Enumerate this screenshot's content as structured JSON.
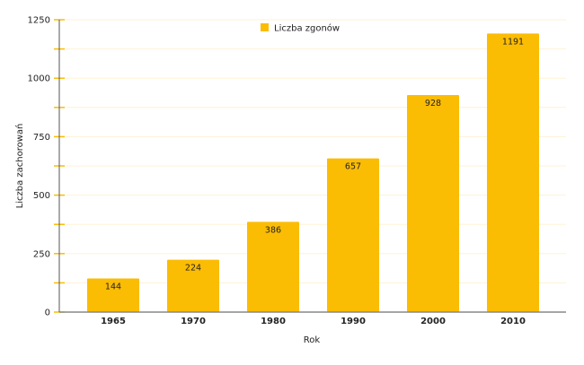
{
  "chart_data": {
    "type": "bar",
    "title": "",
    "xlabel": "Rok",
    "ylabel": "Liczba zachorowań",
    "categories": [
      "1965",
      "1970",
      "1980",
      "1990",
      "2000",
      "2010"
    ],
    "series": [
      {
        "name": "Liczba zgonów",
        "values": [
          144,
          224,
          386,
          657,
          928,
          1191
        ],
        "color": "#FBBC04"
      }
    ],
    "ylim": [
      0,
      1250
    ],
    "yticks": [
      0,
      250,
      500,
      750,
      1000,
      1250
    ],
    "minor_ytick_step": 125,
    "grid": true,
    "legend_position": "top-center",
    "data_labels": true
  },
  "colors": {
    "bar": "#FBBC04",
    "tick": "#FBBC04",
    "grid": "#FFF3D6",
    "axis": "#555555",
    "text": "#222222"
  }
}
